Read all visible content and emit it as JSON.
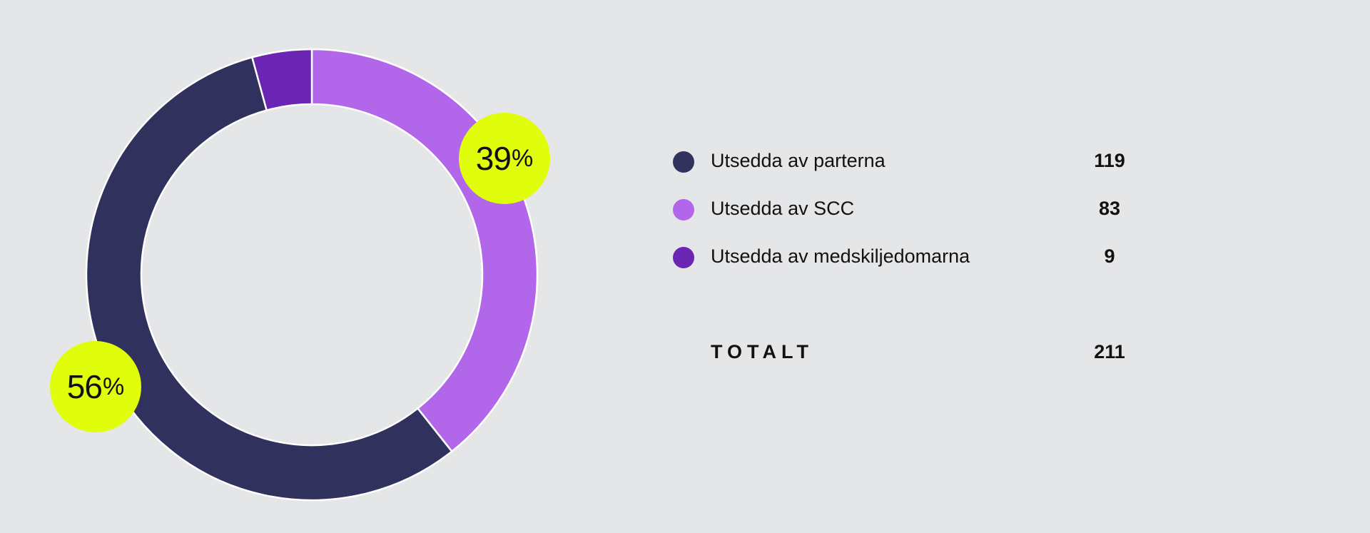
{
  "chart_data": {
    "type": "pie",
    "donut": true,
    "categories": [
      "Utsedda av parterna",
      "Utsedda av SCC",
      "Utsedda av medskiljedomarna"
    ],
    "values": [
      119,
      83,
      9
    ],
    "colors": [
      "#30325d",
      "#b266ea",
      "#6a25b3"
    ],
    "percent_labels": [
      {
        "value": "56",
        "suffix": "%",
        "color": "#e0fd0b"
      },
      {
        "value": "39",
        "suffix": "%",
        "color": "#e0fd0b"
      }
    ],
    "legend_position": "right",
    "start": "top",
    "direction": "clockwise",
    "separator_color": "#ffffff"
  },
  "legend": {
    "items": [
      {
        "label": "Utsedda av parterna",
        "value": "119",
        "color": "#30325d"
      },
      {
        "label": "Utsedda av SCC",
        "value": "83",
        "color": "#b266ea"
      },
      {
        "label": "Utsedda av medskiljedomarna",
        "value": "9",
        "color": "#6a25b3"
      }
    ],
    "total_label": "TOTALT",
    "total_value": "211"
  }
}
